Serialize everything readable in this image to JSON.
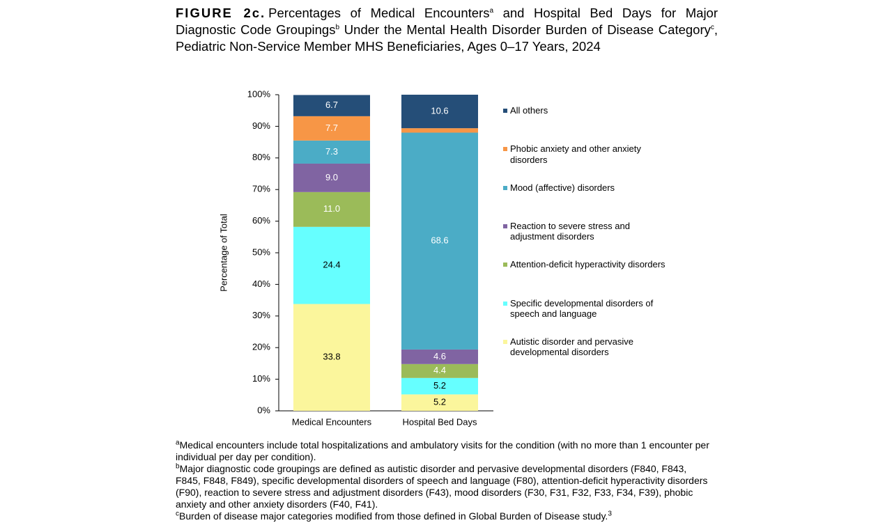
{
  "chart_data": {
    "type": "stacked_bar",
    "title_label": "FIGURE 2c.",
    "title_parts": [
      {
        "text": "Percentages of Medical Encounters"
      },
      {
        "sup": "a"
      },
      {
        "text": " and Hospital Bed Days for Major Diagnostic Code Groupings"
      },
      {
        "sup": "b"
      },
      {
        "text": " Under the Mental Health Disorder Burden of Disease Category"
      },
      {
        "sup": "c"
      },
      {
        "text": ", Pediatric Non-Service Member MHS Beneficiaries, Ages 0–17 Years, 2024"
      }
    ],
    "y_label": "Percentage of Total",
    "categories": [
      "Medical Encounters",
      "Hospital Bed Days"
    ],
    "ylim": [
      0,
      100
    ],
    "yticks": [
      {
        "value": 0,
        "label": "0%"
      },
      {
        "value": 10,
        "label": "10%"
      },
      {
        "value": 20,
        "label": "20%"
      },
      {
        "value": 30,
        "label": "30%"
      },
      {
        "value": 40,
        "label": "40%"
      },
      {
        "value": 50,
        "label": "50%"
      },
      {
        "value": 60,
        "label": "60%"
      },
      {
        "value": 70,
        "label": "70%"
      },
      {
        "value": 80,
        "label": "80%"
      },
      {
        "value": 90,
        "label": "90%"
      },
      {
        "value": 100,
        "label": "100%"
      }
    ],
    "series": [
      {
        "name": "Autistic disorder and pervasive developmental disorders",
        "color": "#fbf69c",
        "values": [
          33.8,
          5.2
        ],
        "value_labels": [
          "33.8",
          "5.2"
        ]
      },
      {
        "name": "Specific developmental disorders of speech and language",
        "color": "#66ffff",
        "values": [
          24.4,
          5.2
        ],
        "value_labels": [
          "24.4",
          "5.2"
        ]
      },
      {
        "name": "Attention-deficit hyperactivity disorders",
        "color": "#9bbb59",
        "values": [
          11.0,
          4.4
        ],
        "value_labels": [
          "11.0",
          "4.4"
        ]
      },
      {
        "name": "Reaction to severe stress and adjustment disorders",
        "color": "#8064a2",
        "values": [
          9.0,
          4.6
        ],
        "value_labels": [
          "9.0",
          "4.6"
        ]
      },
      {
        "name": "Mood (affective) disorders",
        "color": "#4bacc6",
        "values": [
          7.3,
          68.6
        ],
        "value_labels": [
          "7.3",
          "68.6"
        ]
      },
      {
        "name": "Phobic anxiety and other anxiety disorders",
        "color": "#f79646",
        "values": [
          7.7,
          1.4
        ],
        "value_labels": [
          "7.7",
          null
        ]
      },
      {
        "name": "All others",
        "color": "#254e78",
        "values": [
          6.7,
          10.6
        ],
        "value_labels": [
          "6.7",
          "10.6"
        ]
      }
    ],
    "notes": [
      {
        "mark": "a",
        "text": "Medical encounters include total hospitalizations and ambulatory visits for the condition (with no more than 1 encounter per individual per day per condition)."
      },
      {
        "mark": "b",
        "text": "Major diagnostic code groupings are defined as autistic disorder and pervasive developmental disorders (F840, F843, F845, F848, F849), specific developmental disorders of speech and language (F80), attention-deficit hyperactivity disorders (F90), reaction to severe stress and adjustment disorders (F43), mood disorders (F30, F31, F32, F33, F34, F39), phobic anxiety and other anxiety disorders (F40, F41)."
      },
      {
        "mark": "c",
        "text": "Burden of disease major categories modified from those defined in Global Burden of Disease study.",
        "ref": "3"
      }
    ]
  }
}
